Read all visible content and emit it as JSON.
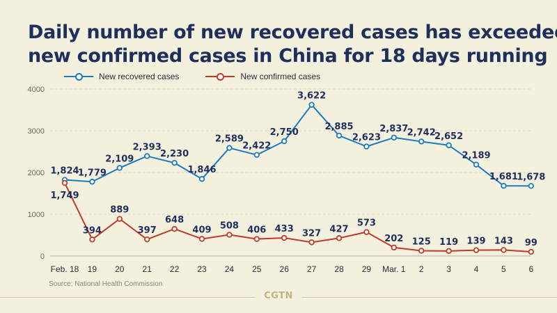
{
  "title": {
    "line1": "Daily number of new recovered cases has exceeded",
    "line2": "new confirmed cases in China for 18 days running"
  },
  "legend": {
    "recovered_label": "New recovered cases",
    "confirmed_label": "New confirmed cases"
  },
  "source": "Source: National Health Commission",
  "logo": "CGTN",
  "colors": {
    "background": "#f4f0de",
    "recovered": "#1a7bbf",
    "confirmed": "#c0392b",
    "title": "#1e2f5c",
    "labels": "#1e2f5c"
  },
  "chart_data": {
    "type": "line",
    "categories": [
      "Feb. 18",
      "19",
      "20",
      "21",
      "22",
      "23",
      "24",
      "25",
      "26",
      "27",
      "28",
      "29",
      "Mar. 1",
      "2",
      "3",
      "4",
      "5",
      "6"
    ],
    "series": [
      {
        "name": "New recovered cases",
        "values": [
          1824,
          1779,
          2109,
          2393,
          2230,
          1846,
          2589,
          2422,
          2750,
          3622,
          2885,
          2623,
          2837,
          2742,
          2652,
          2189,
          1681,
          1678
        ],
        "labels": [
          "1,824",
          "1,779",
          "2,109",
          "2,393",
          "2,230",
          "1,846",
          "2,589",
          "2,422",
          "2,750",
          "3,622",
          "2,885",
          "2,623",
          "2,837",
          "2,742",
          "2,652",
          "2,189",
          "1,681",
          "1,678"
        ]
      },
      {
        "name": "New confirmed cases",
        "values": [
          1749,
          394,
          889,
          397,
          648,
          409,
          508,
          406,
          433,
          327,
          427,
          573,
          202,
          125,
          119,
          139,
          143,
          99
        ],
        "labels": [
          "1,749",
          "394",
          "889",
          "397",
          "648",
          "409",
          "508",
          "406",
          "433",
          "327",
          "427",
          "573",
          "202",
          "125",
          "119",
          "139",
          "143",
          "99"
        ]
      }
    ],
    "yticks": [
      0,
      1000,
      2000,
      3000,
      4000
    ],
    "ylim": [
      0,
      4000
    ],
    "grid": true,
    "legend_position": "top-left"
  }
}
